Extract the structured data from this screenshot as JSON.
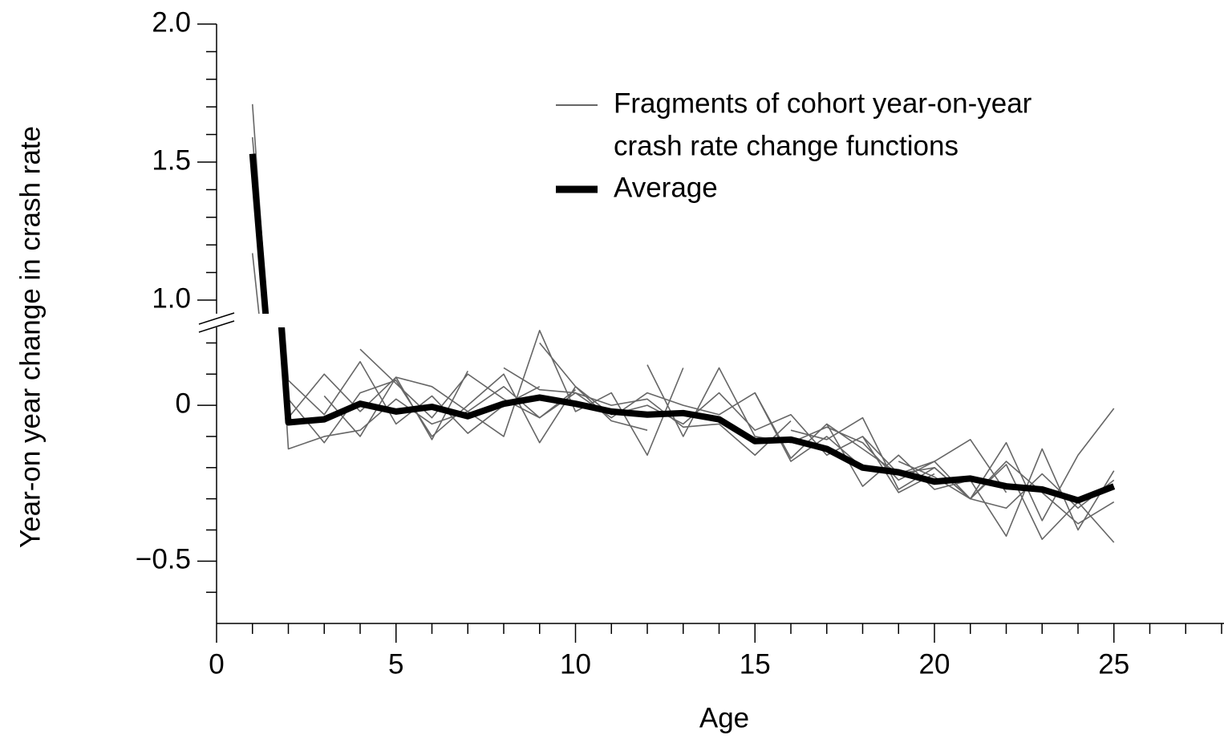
{
  "chart_data": {
    "type": "line",
    "x_label": "Age",
    "y_label": "Year-on year change in crash rate",
    "xlim": [
      0,
      28
    ],
    "xticks": [
      0,
      5,
      10,
      15,
      20,
      25
    ],
    "x_minor_ticks": [
      1,
      2,
      3,
      4,
      6,
      7,
      8,
      9,
      11,
      12,
      13,
      14,
      16,
      17,
      18,
      19,
      21,
      22,
      23,
      24,
      26,
      27,
      28
    ],
    "y_break": true,
    "upper_ylim": [
      0.95,
      2.0
    ],
    "upper_yticks": [
      {
        "value": 1.0,
        "label": "1.0"
      },
      {
        "value": 1.5,
        "label": "1.5"
      },
      {
        "value": 2.0,
        "label": "2.0"
      }
    ],
    "upper_y_minor_ticks": [
      1.1,
      1.2,
      1.3,
      1.4,
      1.6,
      1.7,
      1.8,
      1.9
    ],
    "lower_ylim": [
      -0.7,
      0.25
    ],
    "lower_yticks": [
      {
        "value": -0.5,
        "label": "−0.5"
      },
      0
    ],
    "lower_y_minor_ticks": [
      -0.6,
      -0.4,
      -0.3,
      -0.2,
      -0.1,
      0.1,
      0.2
    ],
    "fragments": {
      "name": [
        "Fragments of cohort year-on-year",
        "crash rate change functions"
      ],
      "color": "#666666",
      "lines": [
        {
          "x": [
            1,
            2,
            3,
            4,
            5,
            6,
            7,
            8,
            9,
            10
          ],
          "values": [
            1.71,
            -0.14,
            -0.1,
            -0.08,
            0.02,
            -0.06,
            -0.02,
            0.06,
            -0.04,
            0.05
          ]
        },
        {
          "x": [
            1,
            2,
            3,
            4,
            5,
            6,
            7,
            8,
            9
          ],
          "values": [
            1.59,
            0.08,
            -0.03,
            0.14,
            -0.06,
            0.03,
            -0.09,
            0.0,
            0.06
          ]
        },
        {
          "x": [
            1,
            2,
            3,
            4,
            5,
            6,
            7
          ],
          "values": [
            1.17,
            -0.04,
            0.1,
            -0.02,
            0.09,
            -0.11,
            0.11
          ]
        },
        {
          "x": [
            2,
            3,
            4,
            5,
            6,
            7,
            8,
            9,
            10,
            11,
            12
          ],
          "values": [
            0.02,
            -0.12,
            0.04,
            0.08,
            -0.1,
            0.0,
            0.1,
            -0.12,
            0.06,
            -0.05,
            -0.08
          ]
        },
        {
          "x": [
            3,
            4,
            5,
            6,
            7,
            8,
            9,
            10,
            11,
            12,
            13
          ],
          "values": [
            0.03,
            -0.1,
            0.09,
            0.06,
            -0.02,
            -0.1,
            0.24,
            -0.02,
            0.04,
            -0.16,
            0.12
          ]
        },
        {
          "x": [
            4,
            5,
            6,
            7,
            8,
            9,
            10,
            11,
            12,
            13,
            14,
            15,
            16
          ],
          "values": [
            0.18,
            0.07,
            -0.04,
            0.1,
            0.02,
            -0.04,
            0.04,
            0.0,
            0.02,
            -0.07,
            -0.06,
            -0.16,
            -0.05
          ]
        },
        {
          "x": [
            8,
            9,
            10,
            11,
            12,
            13,
            14,
            15,
            16,
            17,
            18
          ],
          "values": [
            0.12,
            0.05,
            0.04,
            -0.04,
            0.04,
            0.0,
            -0.03,
            0.04,
            -0.18,
            -0.1,
            -0.2
          ]
        },
        {
          "x": [
            9,
            10,
            11,
            12,
            13,
            14,
            15,
            16,
            17,
            18,
            19,
            20
          ],
          "values": [
            0.2,
            0.06,
            -0.03,
            0.0,
            -0.06,
            0.04,
            -0.08,
            -0.03,
            -0.16,
            -0.1,
            -0.28,
            -0.22
          ]
        },
        {
          "x": [
            12,
            13,
            14,
            15,
            16,
            17,
            18,
            19,
            20,
            21,
            22
          ],
          "values": [
            0.13,
            -0.1,
            0.12,
            -0.1,
            -0.12,
            -0.07,
            -0.12,
            -0.24,
            -0.18,
            -0.11,
            -0.28
          ]
        },
        {
          "x": [
            15,
            16,
            17,
            18,
            19,
            20,
            21,
            22,
            23,
            24,
            25
          ],
          "values": [
            0.04,
            -0.17,
            -0.06,
            -0.14,
            -0.22,
            -0.18,
            -0.3,
            -0.19,
            -0.43,
            -0.31,
            -0.44
          ]
        },
        {
          "x": [
            16,
            17,
            18,
            19,
            20,
            21,
            22,
            23,
            24,
            25
          ],
          "values": [
            -0.08,
            -0.11,
            -0.04,
            -0.27,
            -0.2,
            -0.3,
            -0.12,
            -0.37,
            -0.16,
            -0.01
          ]
        },
        {
          "x": [
            17,
            18,
            19,
            20,
            21,
            22,
            23,
            24,
            25
          ],
          "values": [
            -0.06,
            -0.26,
            -0.16,
            -0.27,
            -0.24,
            -0.42,
            -0.14,
            -0.4,
            -0.21
          ]
        },
        {
          "x": [
            18,
            19,
            20,
            21,
            22,
            23,
            24,
            25
          ],
          "values": [
            -0.1,
            -0.22,
            -0.2,
            -0.3,
            -0.18,
            -0.28,
            -0.38,
            -0.31
          ]
        },
        {
          "x": [
            19,
            20,
            21,
            22,
            23,
            24,
            25
          ],
          "values": [
            -0.18,
            -0.23,
            -0.3,
            -0.33,
            -0.22,
            -0.33,
            -0.24
          ]
        }
      ]
    },
    "average": {
      "name": "Average",
      "color": "#000000",
      "x": [
        1,
        2,
        3,
        4,
        5,
        6,
        7,
        8,
        9,
        10,
        11,
        12,
        13,
        14,
        15,
        16,
        17,
        18,
        19,
        20,
        21,
        22,
        23,
        24,
        25
      ],
      "values": [
        1.53,
        -0.055,
        -0.045,
        0.005,
        -0.02,
        -0.005,
        -0.035,
        0.005,
        0.025,
        0.005,
        -0.02,
        -0.03,
        -0.025,
        -0.045,
        -0.115,
        -0.11,
        -0.14,
        -0.2,
        -0.215,
        -0.245,
        -0.235,
        -0.26,
        -0.27,
        -0.305,
        -0.26
      ]
    }
  }
}
